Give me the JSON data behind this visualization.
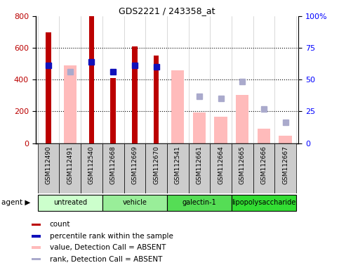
{
  "title": "GDS2221 / 243358_at",
  "samples": [
    "GSM112490",
    "GSM112491",
    "GSM112540",
    "GSM112668",
    "GSM112669",
    "GSM112670",
    "GSM112541",
    "GSM112661",
    "GSM112664",
    "GSM112665",
    "GSM112666",
    "GSM112667"
  ],
  "groups": [
    {
      "label": "untreated",
      "indices": [
        0,
        1,
        2
      ],
      "color": "#ccffcc"
    },
    {
      "label": "vehicle",
      "indices": [
        3,
        4,
        5
      ],
      "color": "#99ee99"
    },
    {
      "label": "galectin-1",
      "indices": [
        6,
        7,
        8
      ],
      "color": "#55dd55"
    },
    {
      "label": "lipopolysaccharide",
      "indices": [
        9,
        10,
        11
      ],
      "color": "#33dd33"
    }
  ],
  "count": [
    700,
    null,
    800,
    410,
    610,
    550,
    null,
    null,
    null,
    null,
    null,
    null
  ],
  "percentile_rank": [
    490,
    null,
    510,
    450,
    490,
    480,
    null,
    null,
    null,
    null,
    null,
    null
  ],
  "value_absent": [
    null,
    490,
    null,
    null,
    null,
    null,
    460,
    195,
    165,
    305,
    92,
    48
  ],
  "rank_absent": [
    null,
    450,
    null,
    null,
    null,
    null,
    null,
    295,
    280,
    390,
    215,
    133
  ],
  "ylim_left": [
    0,
    800
  ],
  "ylim_right": [
    0,
    100
  ],
  "yticks_left": [
    0,
    200,
    400,
    600,
    800
  ],
  "yticks_right": [
    0,
    25,
    50,
    75,
    100
  ],
  "count_color": "#bb0000",
  "rank_color": "#1111bb",
  "value_absent_color": "#ffbbbb",
  "rank_absent_color": "#aaaacc",
  "bg_color": "#ffffff",
  "xtick_bg": "#cccccc",
  "legend_items": [
    {
      "color": "#bb0000",
      "label": "count"
    },
    {
      "color": "#1111bb",
      "label": "percentile rank within the sample"
    },
    {
      "color": "#ffbbbb",
      "label": "value, Detection Call = ABSENT"
    },
    {
      "color": "#aaaacc",
      "label": "rank, Detection Call = ABSENT"
    }
  ]
}
